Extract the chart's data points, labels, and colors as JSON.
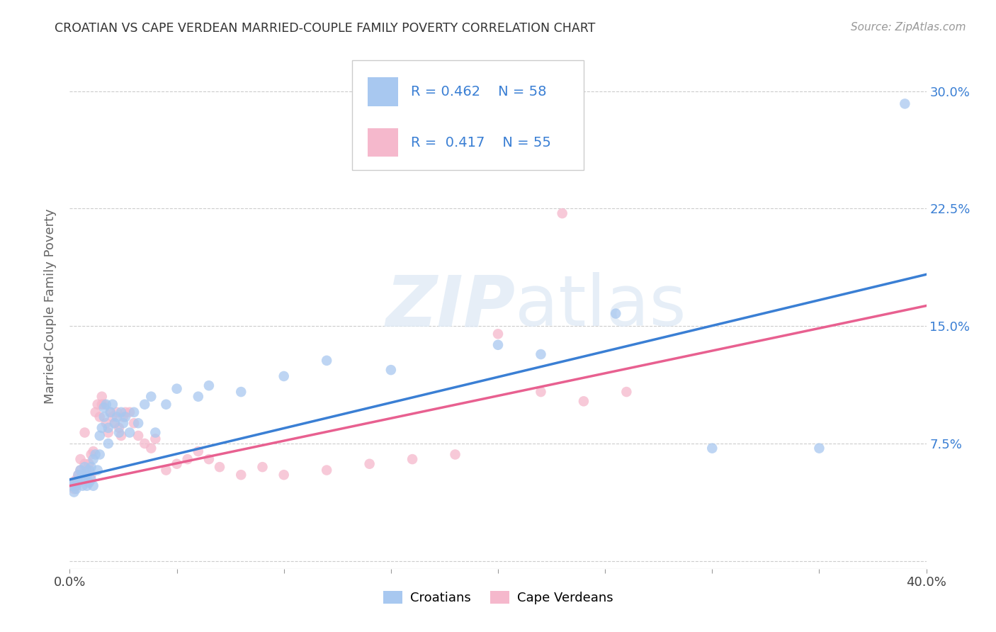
{
  "title": "CROATIAN VS CAPE VERDEAN MARRIED-COUPLE FAMILY POVERTY CORRELATION CHART",
  "source": "Source: ZipAtlas.com",
  "ylabel": "Married-Couple Family Poverty",
  "xlim": [
    0.0,
    0.4
  ],
  "ylim": [
    -0.005,
    0.33
  ],
  "watermark_zip": "ZIP",
  "watermark_atlas": "atlas",
  "legend_blue_label": "Croatians",
  "legend_pink_label": "Cape Verdeans",
  "blue_color": "#a8c8f0",
  "pink_color": "#f5b8cc",
  "line_blue": "#3a7fd4",
  "line_pink": "#e86090",
  "title_color": "#333333",
  "source_color": "#999999",
  "legend_text_color": "#3a7fd4",
  "blue_scatter": [
    [
      0.001,
      0.048
    ],
    [
      0.002,
      0.044
    ],
    [
      0.002,
      0.05
    ],
    [
      0.003,
      0.046
    ],
    [
      0.004,
      0.05
    ],
    [
      0.004,
      0.055
    ],
    [
      0.005,
      0.052
    ],
    [
      0.005,
      0.058
    ],
    [
      0.006,
      0.048
    ],
    [
      0.006,
      0.055
    ],
    [
      0.007,
      0.052
    ],
    [
      0.007,
      0.06
    ],
    [
      0.008,
      0.055
    ],
    [
      0.008,
      0.048
    ],
    [
      0.009,
      0.05
    ],
    [
      0.009,
      0.058
    ],
    [
      0.01,
      0.06
    ],
    [
      0.01,
      0.052
    ],
    [
      0.011,
      0.065
    ],
    [
      0.011,
      0.048
    ],
    [
      0.012,
      0.068
    ],
    [
      0.013,
      0.058
    ],
    [
      0.014,
      0.08
    ],
    [
      0.014,
      0.068
    ],
    [
      0.015,
      0.085
    ],
    [
      0.016,
      0.092
    ],
    [
      0.016,
      0.098
    ],
    [
      0.017,
      0.1
    ],
    [
      0.018,
      0.075
    ],
    [
      0.018,
      0.085
    ],
    [
      0.019,
      0.095
    ],
    [
      0.02,
      0.1
    ],
    [
      0.021,
      0.088
    ],
    [
      0.022,
      0.092
    ],
    [
      0.023,
      0.082
    ],
    [
      0.024,
      0.095
    ],
    [
      0.025,
      0.088
    ],
    [
      0.026,
      0.092
    ],
    [
      0.028,
      0.082
    ],
    [
      0.03,
      0.095
    ],
    [
      0.032,
      0.088
    ],
    [
      0.035,
      0.1
    ],
    [
      0.038,
      0.105
    ],
    [
      0.04,
      0.082
    ],
    [
      0.045,
      0.1
    ],
    [
      0.05,
      0.11
    ],
    [
      0.06,
      0.105
    ],
    [
      0.065,
      0.112
    ],
    [
      0.08,
      0.108
    ],
    [
      0.1,
      0.118
    ],
    [
      0.12,
      0.128
    ],
    [
      0.15,
      0.122
    ],
    [
      0.2,
      0.138
    ],
    [
      0.22,
      0.132
    ],
    [
      0.255,
      0.158
    ],
    [
      0.3,
      0.072
    ],
    [
      0.35,
      0.072
    ],
    [
      0.39,
      0.292
    ]
  ],
  "pink_scatter": [
    [
      0.001,
      0.05
    ],
    [
      0.002,
      0.046
    ],
    [
      0.003,
      0.052
    ],
    [
      0.003,
      0.048
    ],
    [
      0.004,
      0.055
    ],
    [
      0.005,
      0.058
    ],
    [
      0.005,
      0.065
    ],
    [
      0.006,
      0.055
    ],
    [
      0.007,
      0.082
    ],
    [
      0.007,
      0.062
    ],
    [
      0.008,
      0.058
    ],
    [
      0.009,
      0.062
    ],
    [
      0.01,
      0.068
    ],
    [
      0.01,
      0.055
    ],
    [
      0.011,
      0.07
    ],
    [
      0.012,
      0.095
    ],
    [
      0.013,
      0.1
    ],
    [
      0.014,
      0.092
    ],
    [
      0.015,
      0.1
    ],
    [
      0.015,
      0.105
    ],
    [
      0.016,
      0.1
    ],
    [
      0.017,
      0.088
    ],
    [
      0.018,
      0.082
    ],
    [
      0.019,
      0.095
    ],
    [
      0.02,
      0.092
    ],
    [
      0.021,
      0.088
    ],
    [
      0.022,
      0.095
    ],
    [
      0.023,
      0.085
    ],
    [
      0.024,
      0.08
    ],
    [
      0.025,
      0.092
    ],
    [
      0.026,
      0.095
    ],
    [
      0.028,
      0.095
    ],
    [
      0.03,
      0.088
    ],
    [
      0.032,
      0.08
    ],
    [
      0.035,
      0.075
    ],
    [
      0.038,
      0.072
    ],
    [
      0.04,
      0.078
    ],
    [
      0.045,
      0.058
    ],
    [
      0.05,
      0.062
    ],
    [
      0.055,
      0.065
    ],
    [
      0.06,
      0.07
    ],
    [
      0.065,
      0.065
    ],
    [
      0.07,
      0.06
    ],
    [
      0.08,
      0.055
    ],
    [
      0.09,
      0.06
    ],
    [
      0.1,
      0.055
    ],
    [
      0.12,
      0.058
    ],
    [
      0.14,
      0.062
    ],
    [
      0.16,
      0.065
    ],
    [
      0.18,
      0.068
    ],
    [
      0.2,
      0.145
    ],
    [
      0.22,
      0.108
    ],
    [
      0.24,
      0.102
    ],
    [
      0.26,
      0.108
    ],
    [
      0.23,
      0.222
    ]
  ],
  "blue_line_x": [
    0.0,
    0.4
  ],
  "blue_line_y": [
    0.052,
    0.183
  ],
  "pink_line_x": [
    0.0,
    0.4
  ],
  "pink_line_y": [
    0.048,
    0.163
  ]
}
